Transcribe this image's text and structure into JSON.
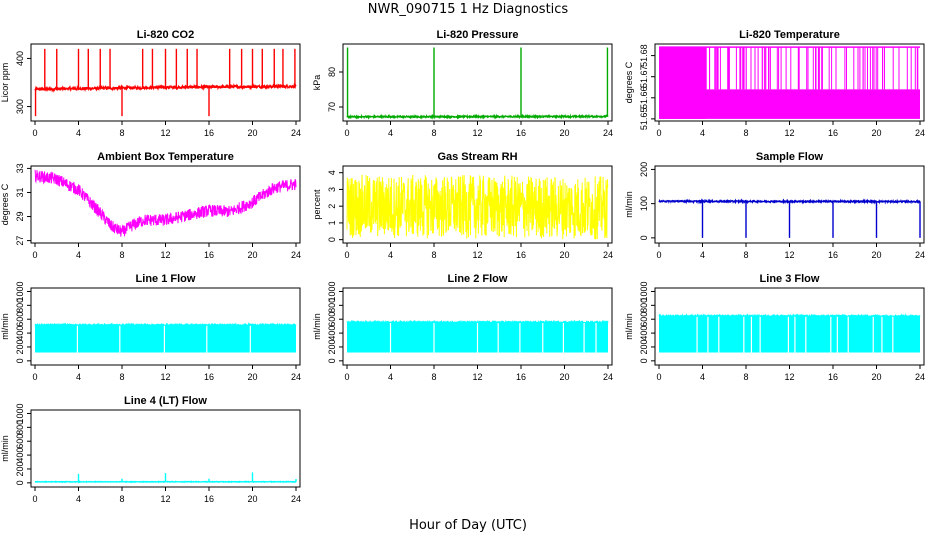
{
  "title": "NWR_090715  1 Hz Diagnostics",
  "xlabel": "Hour of Day (UTC)",
  "chart_data": [
    {
      "type": "line",
      "title": "Li-820 CO2",
      "ylabel": "Licor ppm",
      "color": "#ff0000",
      "xlim": [
        0,
        24
      ],
      "xticks": [
        0,
        4,
        8,
        12,
        16,
        20,
        24
      ],
      "ylim": [
        270,
        430
      ],
      "yticks": [
        300,
        400
      ],
      "pattern": "baseline_spikes",
      "baseline": [
        [
          0,
          336
        ],
        [
          6,
          338
        ],
        [
          12,
          340
        ],
        [
          18,
          341
        ],
        [
          24,
          342
        ]
      ],
      "noise": 3,
      "spikes_up": [
        0.9,
        2.0,
        4.0,
        4.9,
        6.0,
        6.9,
        9.9,
        10.8,
        12.0,
        13.0,
        14.0,
        14.9,
        17.9,
        19.0,
        20.0,
        20.9,
        22.0,
        22.8,
        23.9
      ],
      "spike_peak": 420,
      "spikes_down": [
        0.05,
        8.0,
        16.0
      ],
      "spike_low": 280
    },
    {
      "type": "line",
      "title": "Li-820 Pressure",
      "ylabel": "kPa",
      "color": "#00aa00",
      "xlim": [
        0,
        24
      ],
      "xticks": [
        0,
        4,
        8,
        12,
        16,
        20,
        24
      ],
      "ylim": [
        66,
        88
      ],
      "yticks": [
        70,
        80
      ],
      "pattern": "baseline_spikes",
      "baseline": [
        [
          0,
          67.2
        ],
        [
          24,
          67.3
        ]
      ],
      "noise": 0.2,
      "spikes_up": [
        0.05,
        8.0,
        16.0,
        23.95
      ],
      "spike_peak": 87
    },
    {
      "type": "line",
      "title": "Li-820 Temperature",
      "ylabel": "degrees C",
      "color": "#ff00ff",
      "xlim": [
        0,
        24
      ],
      "xticks": [
        0,
        4,
        8,
        12,
        16,
        20,
        24
      ],
      "ylim": [
        51.649,
        51.6855
      ],
      "yticks": [
        51.65,
        51.66,
        51.67,
        51.68
      ],
      "pattern": "two_level",
      "low": 51.65,
      "high": 51.684,
      "mid": 51.664,
      "band_until": 4.3
    },
    {
      "type": "line",
      "title": "Ambient Box Temperature",
      "ylabel": "degrees C",
      "color": "#ff00ff",
      "xlim": [
        0,
        24
      ],
      "xticks": [
        0,
        4,
        8,
        12,
        16,
        20,
        24
      ],
      "ylim": [
        26.8,
        33.2
      ],
      "yticks": [
        27,
        29,
        31,
        33
      ],
      "pattern": "band",
      "curve": [
        [
          0,
          32.4
        ],
        [
          2,
          32.1
        ],
        [
          4,
          31.2
        ],
        [
          6,
          29.3
        ],
        [
          7,
          28.2
        ],
        [
          8,
          27.7
        ],
        [
          9,
          28.3
        ],
        [
          10,
          28.7
        ],
        [
          12,
          28.7
        ],
        [
          14,
          29.1
        ],
        [
          16,
          29.5
        ],
        [
          18,
          29.4
        ],
        [
          20,
          30.2
        ],
        [
          22,
          31.4
        ],
        [
          24,
          31.7
        ]
      ],
      "noise": 0.5
    },
    {
      "type": "line",
      "title": "Gas Stream RH",
      "ylabel": "percent",
      "color": "#ffff00",
      "xlim": [
        0,
        24
      ],
      "xticks": [
        0,
        4,
        8,
        12,
        16,
        20,
        24
      ],
      "ylim": [
        -0.2,
        4.4
      ],
      "yticks": [
        0,
        1,
        2,
        3,
        4
      ],
      "pattern": "band",
      "curve": [
        [
          0,
          2.0
        ],
        [
          24,
          1.9
        ]
      ],
      "noise": 1.9
    },
    {
      "type": "line",
      "title": "Sample Flow",
      "ylabel": "ml/min",
      "color": "#0000cc",
      "xlim": [
        0,
        24
      ],
      "xticks": [
        0,
        4,
        8,
        12,
        16,
        20,
        24
      ],
      "ylim": [
        -15,
        210
      ],
      "yticks": [
        0,
        100,
        200
      ],
      "pattern": "baseline_spikes",
      "baseline": [
        [
          0,
          107
        ],
        [
          24,
          106
        ]
      ],
      "noise": 2,
      "spikes_down": [
        4.0,
        8.0,
        12.0,
        16.0,
        20.0,
        24.0
      ],
      "spike_low": 0
    },
    {
      "type": "line",
      "title": "Line 1 Flow",
      "ylabel": "ml/min",
      "color": "#00ffff",
      "xlim": [
        0,
        24
      ],
      "xticks": [
        0,
        4,
        8,
        12,
        16,
        20,
        24
      ],
      "ylim": [
        -60,
        1050
      ],
      "yticks": [
        0,
        200,
        400,
        600,
        800,
        1000
      ],
      "pattern": "flow_block",
      "low": 120,
      "high": 520,
      "gaps": [
        3.9,
        7.8,
        11.9,
        15.8,
        19.8
      ]
    },
    {
      "type": "line",
      "title": "Line 2 Flow",
      "ylabel": "ml/min",
      "color": "#00ffff",
      "xlim": [
        0,
        24
      ],
      "xticks": [
        0,
        4,
        8,
        12,
        16,
        20,
        24
      ],
      "ylim": [
        -60,
        1050
      ],
      "yticks": [
        0,
        200,
        400,
        600,
        800,
        1000
      ],
      "pattern": "flow_block",
      "low": 120,
      "high": 560,
      "gaps": [
        4.0,
        8.0,
        12.0,
        13.9,
        15.9,
        18.0,
        19.9,
        21.8,
        22.9
      ]
    },
    {
      "type": "line",
      "title": "Line 3 Flow",
      "ylabel": "ml/min",
      "color": "#00ffff",
      "xlim": [
        0,
        24
      ],
      "xticks": [
        0,
        4,
        8,
        12,
        16,
        20,
        24
      ],
      "ylim": [
        -60,
        1050
      ],
      "yticks": [
        0,
        200,
        400,
        600,
        800,
        1000
      ],
      "pattern": "flow_block",
      "low": 120,
      "high": 650,
      "gaps": [
        3.5,
        4.5,
        5.5,
        7.8,
        8.5,
        9.3,
        11.9,
        12.5,
        13.5,
        15.8,
        16.4,
        17.4,
        19.7,
        20.5,
        21.5
      ]
    },
    {
      "type": "line",
      "title": "Line 4 (LT) Flow",
      "ylabel": "ml/min",
      "color": "#00ffff",
      "xlim": [
        0,
        24
      ],
      "xticks": [
        0,
        4,
        8,
        12,
        16,
        20,
        24
      ],
      "ylim": [
        -60,
        1050
      ],
      "yticks": [
        0,
        200,
        400,
        600,
        800,
        1000
      ],
      "pattern": "baseline_spikes",
      "baseline": [
        [
          0,
          15
        ],
        [
          24,
          15
        ]
      ],
      "noise": 4,
      "spikes_up": [
        4.0,
        8.0,
        12.0,
        16.0,
        20.0,
        24.0
      ],
      "spike_heights": [
        130,
        60,
        140,
        60,
        150,
        55
      ],
      "spike_peak": 130
    }
  ]
}
